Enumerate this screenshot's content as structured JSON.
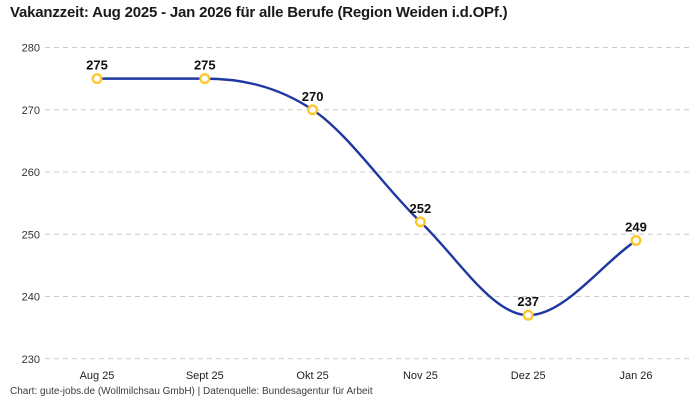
{
  "title": "Vakanzzeit: Aug 2025 - Jan 2026 für alle Berufe (Region Weiden i.d.OPf.)",
  "footer": "Chart: gute-jobs.de (Wollmilchsau GmbH) | Datenquelle: Bundesagentur für Arbeit",
  "chart_data": {
    "type": "line",
    "title": "Vakanzzeit: Aug 2025 - Jan 2026 für alle Berufe (Region Weiden i.d.OPf.)",
    "categories": [
      "Aug 25",
      "Sept 25",
      "Okt 25",
      "Nov 25",
      "Dez 25",
      "Jan 26"
    ],
    "series": [
      {
        "name": "Vakanzzeit",
        "values": [
          275,
          275,
          270,
          252,
          237,
          249
        ]
      }
    ],
    "data_labels": [
      "275",
      "275",
      "270",
      "252",
      "237",
      "249"
    ],
    "yticks": [
      230,
      240,
      250,
      260,
      270,
      280
    ],
    "ylim": [
      230,
      280
    ],
    "grid": "horizontal-dashed",
    "legend": "none",
    "interpolation": "monotone-spline",
    "colors": {
      "line": "#1f37a0",
      "marker_ring": "#ffc72e",
      "marker_fill": "#ffffff",
      "gridline": "#cccccc",
      "tick_label": "#333333",
      "data_label": "#111111"
    }
  }
}
